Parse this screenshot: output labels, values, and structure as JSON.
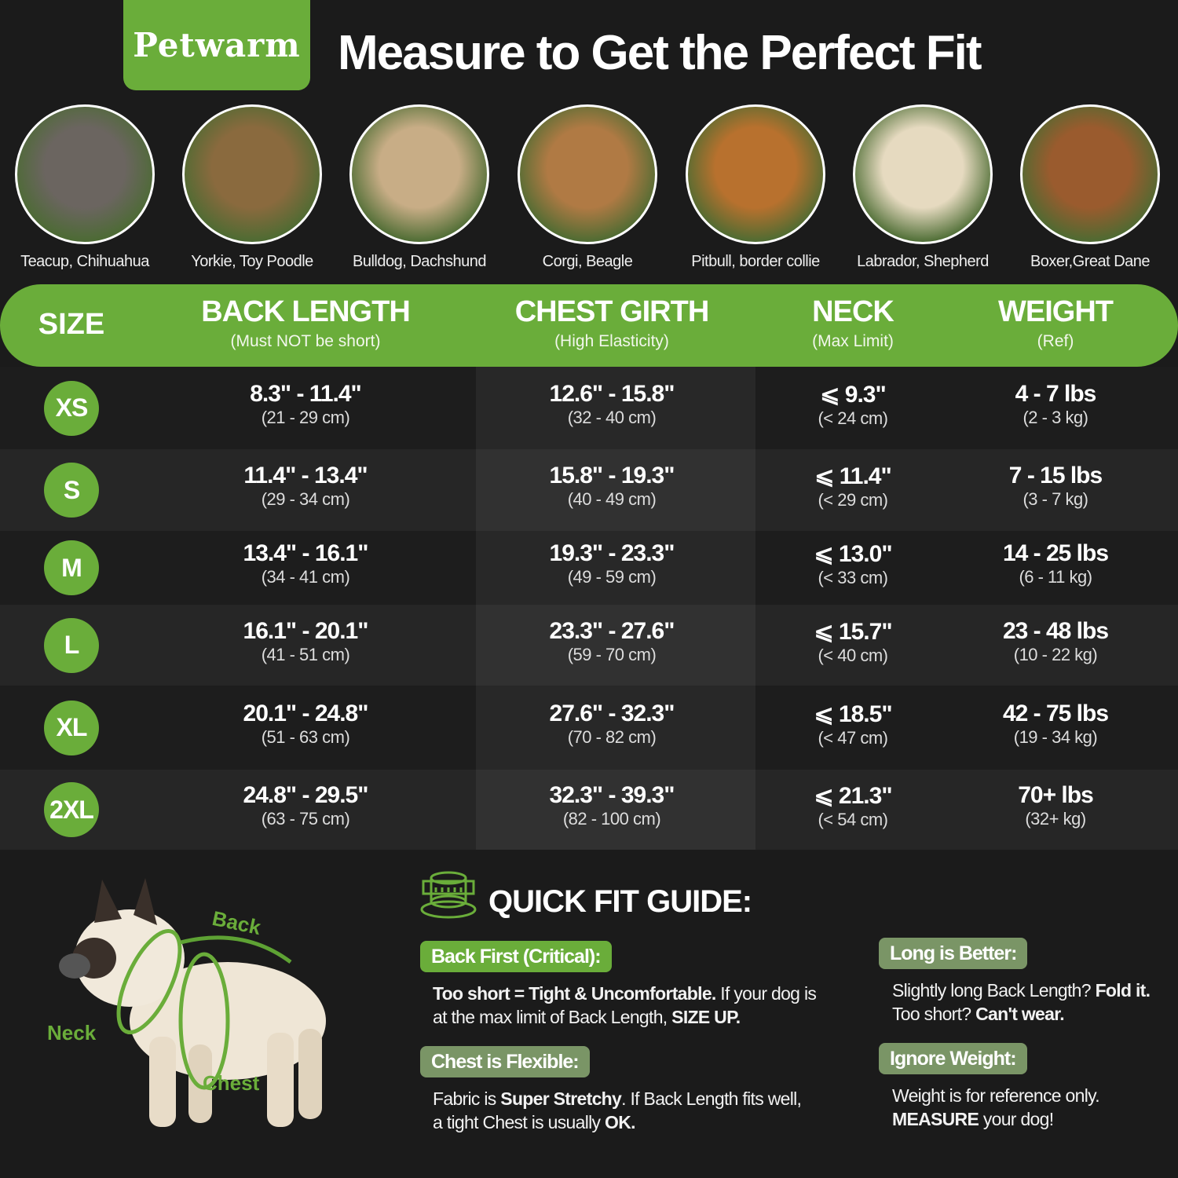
{
  "brand": "Petwarm",
  "title": "Measure to Get the Perfect Fit",
  "colors": {
    "background": "#1b1b1b",
    "accent": "#6aad3a",
    "muted_tag": "#7a9566"
  },
  "breeds": [
    {
      "label": "Teacup, Chihuahua",
      "tone": "#6b6560"
    },
    {
      "label": "Yorkie, Toy Poodle",
      "tone": "#8a6a3e"
    },
    {
      "label": "Bulldog, Dachshund",
      "tone": "#c8ad86"
    },
    {
      "label": "Corgi, Beagle",
      "tone": "#b07a44"
    },
    {
      "label": "Pitbull, border collie",
      "tone": "#b8712e"
    },
    {
      "label": "Labrador, Shepherd",
      "tone": "#e6dac0"
    },
    {
      "label": "Boxer,Great Dane",
      "tone": "#9a5b2e"
    }
  ],
  "table": {
    "headers": [
      {
        "main": "SIZE",
        "sub": ""
      },
      {
        "main": "BACK LENGTH",
        "sub": "(Must NOT be short)"
      },
      {
        "main": "CHEST GIRTH",
        "sub": "(High Elasticity)"
      },
      {
        "main": "NECK",
        "sub": "(Max Limit)"
      },
      {
        "main": "WEIGHT",
        "sub": "(Ref)"
      }
    ],
    "rows": [
      {
        "size": "XS",
        "back": "8.3\" - 11.4\"",
        "back_cm": "(21 - 29 cm)",
        "chest": "12.6\" - 15.8\"",
        "chest_cm": "(32 - 40 cm)",
        "neck": "⩽ 9.3\"",
        "neck_cm": "(< 24 cm)",
        "weight": "4 - 7 lbs",
        "weight_kg": "(2 - 3 kg)"
      },
      {
        "size": "S",
        "back": "11.4\" - 13.4\"",
        "back_cm": "(29 - 34 cm)",
        "chest": "15.8\" - 19.3\"",
        "chest_cm": "(40 - 49 cm)",
        "neck": "⩽ 11.4\"",
        "neck_cm": "(< 29 cm)",
        "weight": "7 - 15 lbs",
        "weight_kg": "(3 - 7 kg)"
      },
      {
        "size": "M",
        "back": "13.4\" - 16.1\"",
        "back_cm": "(34 - 41 cm)",
        "chest": "19.3\" - 23.3\"",
        "chest_cm": "(49 - 59 cm)",
        "neck": "⩽ 13.0\"",
        "neck_cm": "(< 33 cm)",
        "weight": "14 - 25 lbs",
        "weight_kg": "(6 - 11 kg)"
      },
      {
        "size": "L",
        "back": "16.1\" - 20.1\"",
        "back_cm": "(41 - 51 cm)",
        "chest": "23.3\" - 27.6\"",
        "chest_cm": "(59 - 70 cm)",
        "neck": "⩽ 15.7\"",
        "neck_cm": "(< 40 cm)",
        "weight": "23 - 48 lbs",
        "weight_kg": "(10 - 22 kg)"
      },
      {
        "size": "XL",
        "back": "20.1\" - 24.8\"",
        "back_cm": "(51 - 63 cm)",
        "chest": "27.6\" - 32.3\"",
        "chest_cm": "(70 - 82 cm)",
        "neck": "⩽ 18.5\"",
        "neck_cm": "(< 47 cm)",
        "weight": "42 - 75 lbs",
        "weight_kg": "(19 - 34 kg)"
      },
      {
        "size": "2XL",
        "back": "24.8\" - 29.5\"",
        "back_cm": "(63 - 75 cm)",
        "chest": "32.3\" - 39.3\"",
        "chest_cm": "(82 - 100 cm)",
        "neck": "⩽ 21.3\"",
        "neck_cm": "(< 54 cm)",
        "weight": "70+ lbs",
        "weight_kg": "(32+ kg)"
      }
    ]
  },
  "diagram": {
    "back": "Back",
    "neck": "Neck",
    "chest": "Chest"
  },
  "guide": {
    "title": "QUICK FIT GUIDE:",
    "icon": "measuring-tape-icon",
    "items": [
      {
        "tag": "Back First (Critical):",
        "bold1": "Too short = Tight & Uncomfortable.",
        "text1": " If your dog is at the max limit of Back Length, ",
        "bold2": "SIZE UP."
      },
      {
        "tag": "Chest is Flexible:",
        "text0": "Fabric is ",
        "bold1": "Super Stretchy",
        "text1": ". If Back Length fits well, a tight Chest is usually ",
        "bold2": "OK."
      },
      {
        "tag": "Long is Better:",
        "text0": "Slightly long Back Length? ",
        "bold1": "Fold it.",
        "text1": " Too short? ",
        "bold2": "Can't wear."
      },
      {
        "tag": "Ignore Weight:",
        "text0": "Weight is for reference only. ",
        "bold1": "MEASURE",
        "text1": " your dog!"
      }
    ]
  }
}
